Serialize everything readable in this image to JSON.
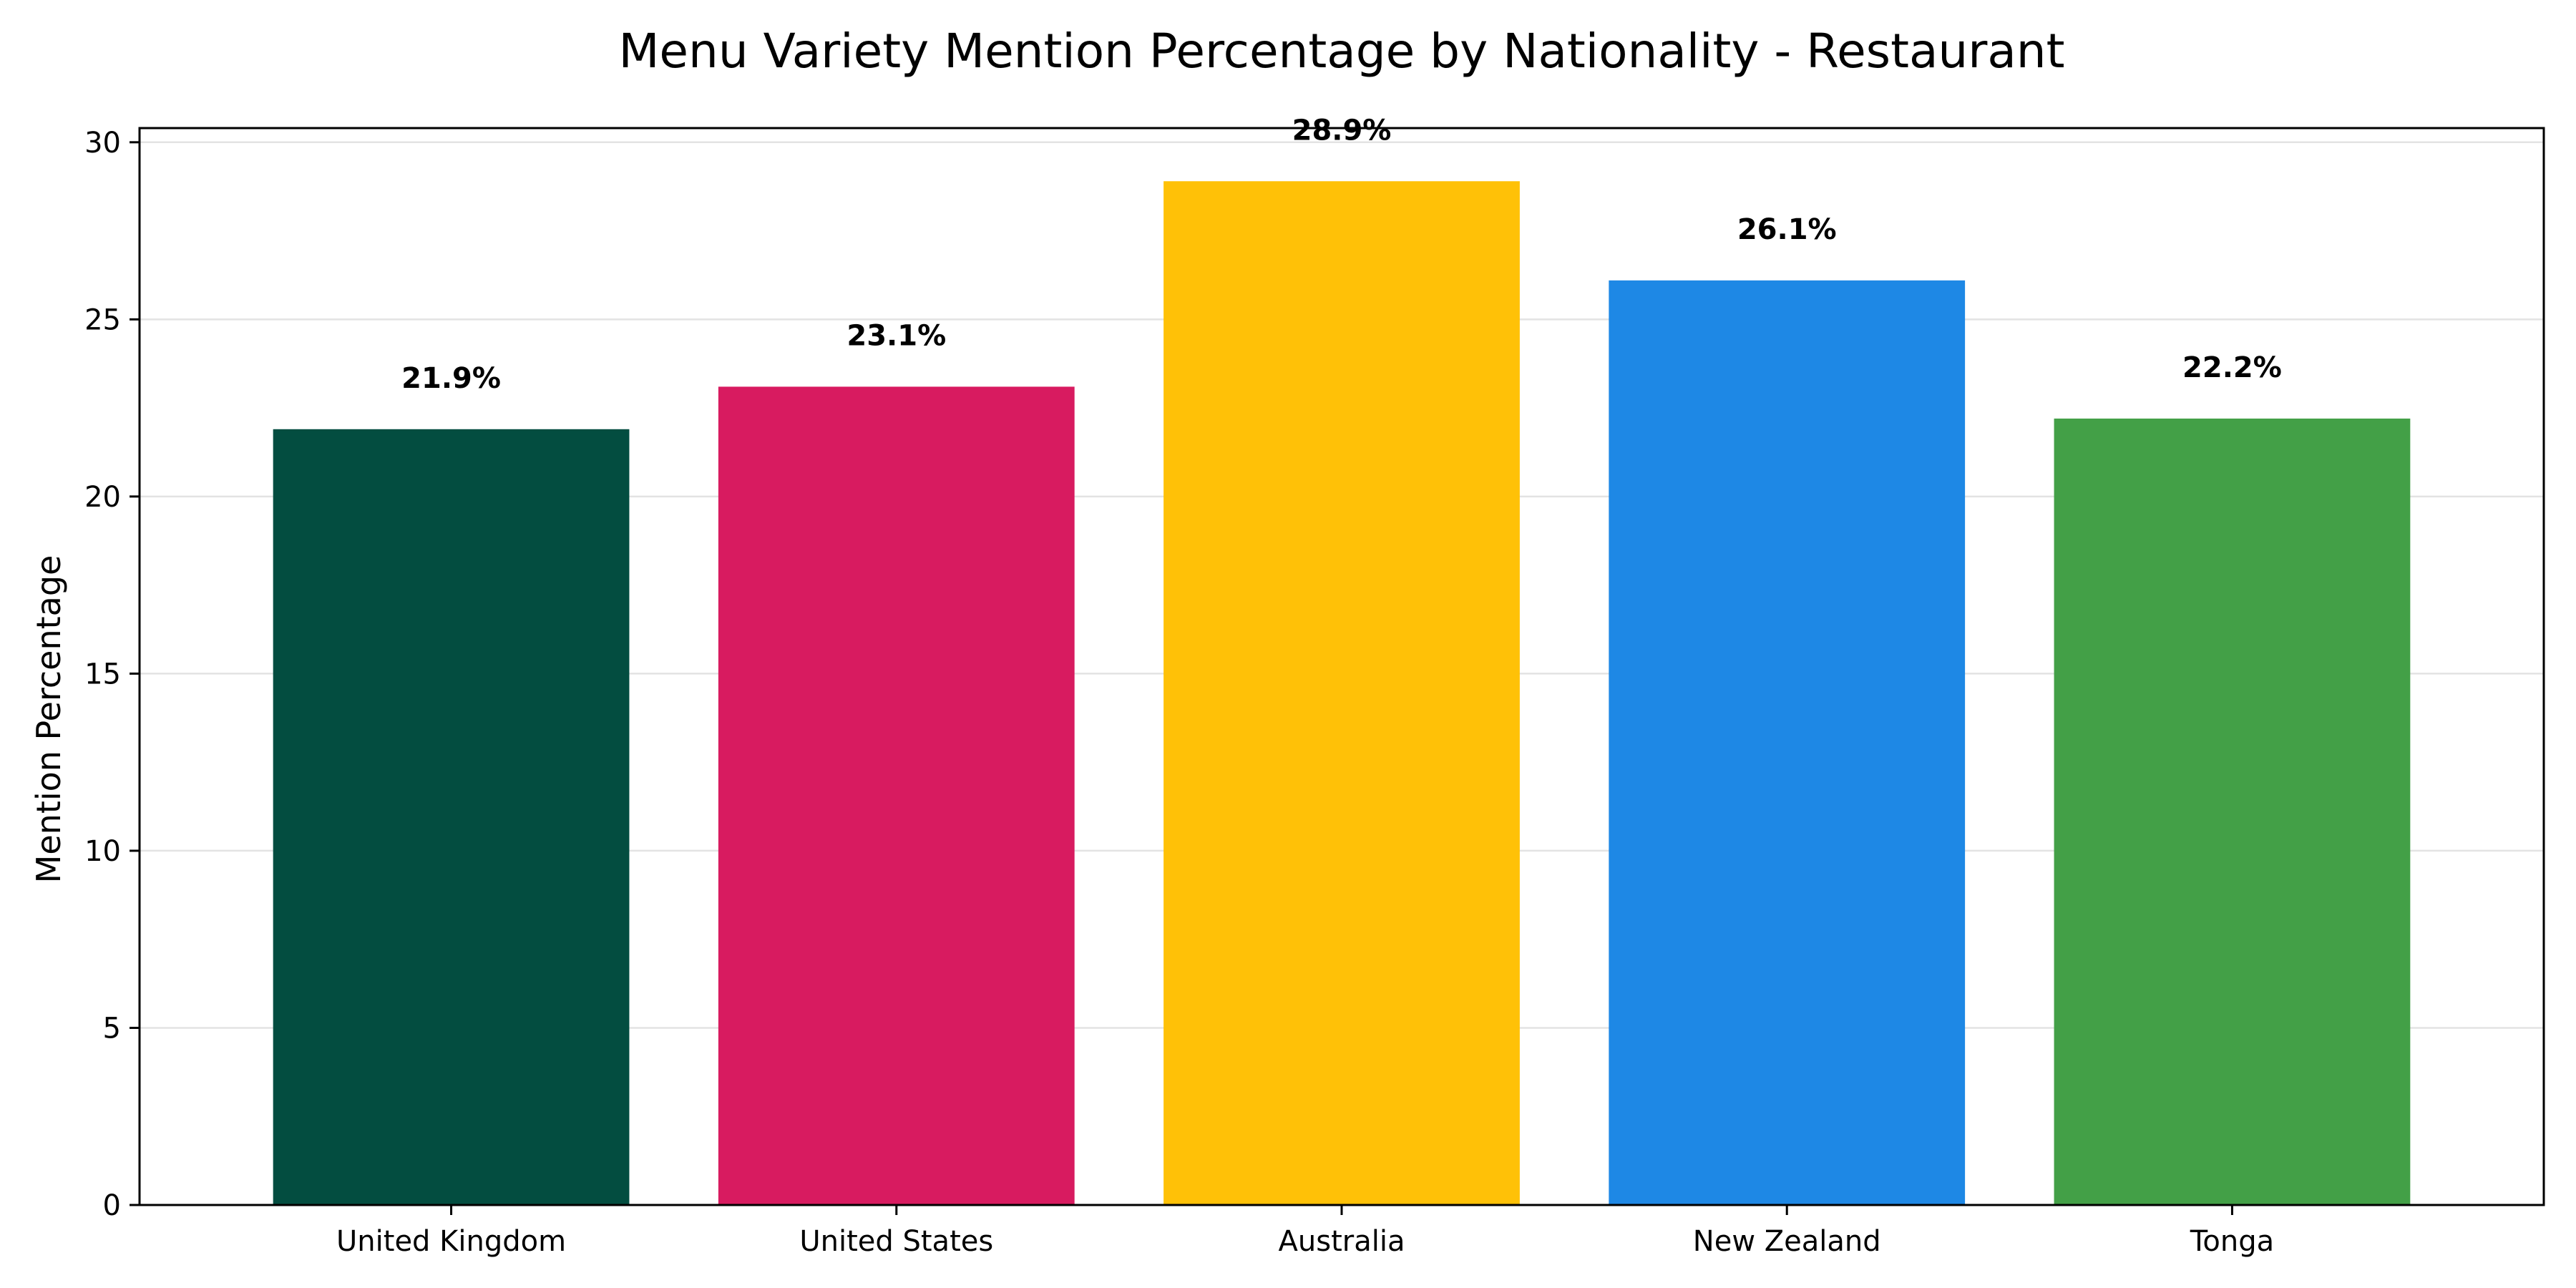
{
  "chart_data": {
    "type": "bar",
    "title": "Menu Variety Mention Percentage by Nationality - Restaurant",
    "xlabel": "",
    "ylabel": "Mention Percentage",
    "categories": [
      "United Kingdom",
      "United States",
      "Australia",
      "New Zealand",
      "Tonga"
    ],
    "values": [
      21.9,
      23.1,
      28.9,
      26.1,
      22.2
    ],
    "value_labels": [
      "21.9%",
      "23.1%",
      "28.9%",
      "26.1%",
      "22.2%"
    ],
    "colors": [
      "#034d40",
      "#d81b60",
      "#ffc107",
      "#1e88e5",
      "#43a047"
    ],
    "ylim": [
      0,
      30.4
    ],
    "yticks": [
      0,
      5,
      10,
      15,
      20,
      25,
      30
    ],
    "ytick_labels": [
      "0",
      "5",
      "10",
      "15",
      "20",
      "25",
      "30"
    ],
    "grid": "y"
  }
}
